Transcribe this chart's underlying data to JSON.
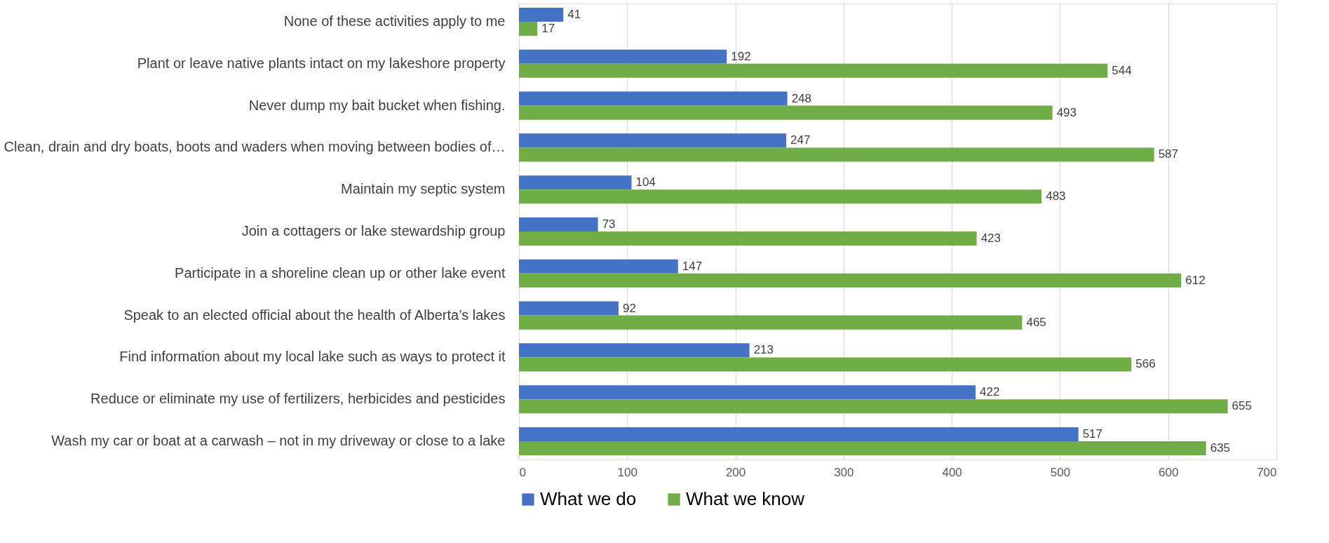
{
  "chart_data": {
    "type": "bar",
    "orientation": "horizontal",
    "categories": [
      "None of these activities apply to me",
      "Plant or leave native plants intact on my lakeshore property",
      "Never dump my bait bucket when fishing.",
      "Clean, drain and dry boats, boots and waders when moving between bodies of…",
      "Maintain my septic system",
      "Join a cottagers or lake stewardship group",
      "Participate in a shoreline clean up or other lake event",
      "Speak to an elected official about the health of Alberta’s lakes",
      "Find information about my local lake such as ways to protect it",
      "Reduce or eliminate my use of fertilizers, herbicides and pesticides",
      "Wash my car or boat at a carwash – not in my driveway or close to a lake"
    ],
    "series": [
      {
        "name": "What we do",
        "color": "#4472c4",
        "values": [
          41,
          192,
          248,
          247,
          104,
          73,
          147,
          92,
          213,
          422,
          517
        ]
      },
      {
        "name": "What we know",
        "color": "#70ad47",
        "values": [
          17,
          544,
          493,
          587,
          483,
          423,
          612,
          465,
          566,
          655,
          635
        ]
      }
    ],
    "xlim": [
      0,
      700
    ],
    "xticks": [
      0,
      100,
      200,
      300,
      400,
      500,
      600,
      700
    ],
    "grid": "x",
    "legend": "bottom",
    "data_labels": true
  }
}
